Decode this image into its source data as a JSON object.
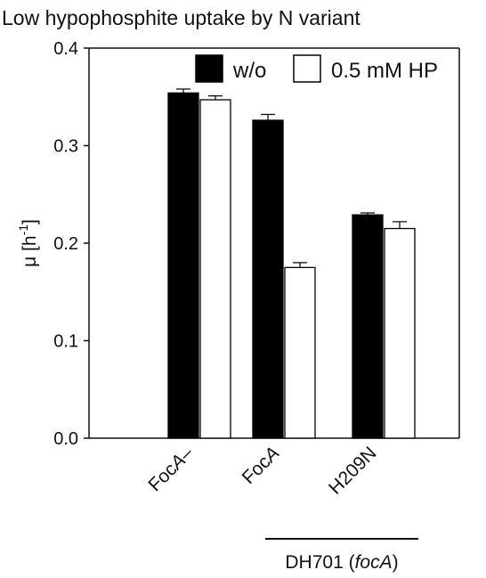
{
  "chart_data": {
    "type": "bar",
    "title": "Low hypophosphite uptake by N variant",
    "xlabel": "",
    "ylabel": "μ [h",
    "ylabel_sup": "-1",
    "ylabel_end": "]",
    "ylim": [
      0,
      0.4
    ],
    "y_ticks": [
      0.0,
      0.1,
      0.2,
      0.3,
      0.4
    ],
    "y_tick_labels": [
      "0.0",
      "0.1",
      "0.2",
      "0.3",
      "0.4"
    ],
    "categories": [
      {
        "parts": [
          {
            "text": "Foc",
            "italic": false
          },
          {
            "text": "A",
            "italic": true
          },
          {
            "text": "–",
            "italic": false
          }
        ]
      },
      {
        "parts": [
          {
            "text": "Foc",
            "italic": false
          },
          {
            "text": "A",
            "italic": true
          }
        ]
      },
      {
        "parts": [
          {
            "text": "H209N",
            "italic": false
          }
        ]
      }
    ],
    "series": [
      {
        "name": "w/o",
        "values": [
          0.354,
          0.326,
          0.229
        ],
        "errors": [
          0.004,
          0.006,
          0.002
        ],
        "color": "#000000"
      },
      {
        "name": "0.5 mM HP",
        "values": [
          0.347,
          0.175,
          0.215
        ],
        "errors": [
          0.004,
          0.005,
          0.007
        ],
        "color": "#ffffff"
      }
    ],
    "group_label": {
      "parts": [
        {
          "text": "DH701 (",
          "italic": false
        },
        {
          "text": "focA",
          "italic": true
        },
        {
          "text": ")",
          "italic": false
        }
      ],
      "spans_categories": [
        1,
        2
      ]
    },
    "legend_position": "top-right",
    "grid": false
  }
}
